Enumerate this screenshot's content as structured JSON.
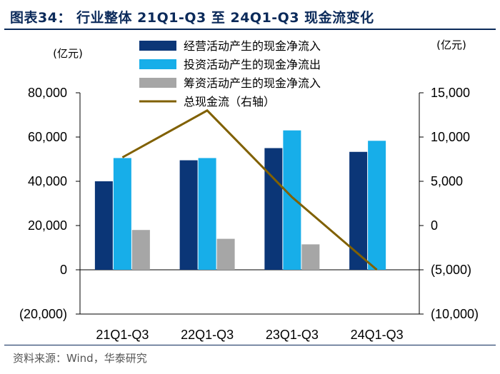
{
  "header": {
    "title": "图表34： 行业整体 21Q1-Q3 至 24Q1-Q3 现金流变化"
  },
  "footer": {
    "source": "资料来源：Wind，华泰研究"
  },
  "colors": {
    "operating": "#0b3677",
    "investing": "#17aee9",
    "financing": "#a6a6a6",
    "total": "#806000",
    "title": "#0b2a5a"
  },
  "chart_data": {
    "type": "bar",
    "categories": [
      "21Q1-Q3",
      "22Q1-Q3",
      "23Q1-Q3",
      "24Q1-Q3"
    ],
    "series": [
      {
        "name": "经营活动产生的现金净流入",
        "type": "bar",
        "axis": "left",
        "values": [
          40000,
          49500,
          55000,
          53300
        ]
      },
      {
        "name": "投资活动产生的现金净流出",
        "type": "bar",
        "axis": "left",
        "values": [
          50500,
          50500,
          63000,
          58300
        ]
      },
      {
        "name": "筹资活动产生的现金净流入",
        "type": "bar",
        "axis": "left",
        "values": [
          18000,
          14000,
          11500,
          0
        ]
      },
      {
        "name": "总现金流（右轴）",
        "type": "line",
        "axis": "right",
        "values": [
          7700,
          13000,
          3200,
          -5000
        ]
      }
    ],
    "y_left": {
      "unit": "(亿元)",
      "min": -20000,
      "max": 80000,
      "ticks": [
        "(20,000)",
        "0",
        "20,000",
        "40,000",
        "60,000",
        "80,000"
      ]
    },
    "y_right": {
      "unit": "(亿元)",
      "min": -10000,
      "max": 15000,
      "ticks": [
        "(10,000)",
        "(5,000)",
        "0",
        "5,000",
        "10,000",
        "15,000"
      ]
    },
    "legend_position": "top",
    "grid": false
  }
}
